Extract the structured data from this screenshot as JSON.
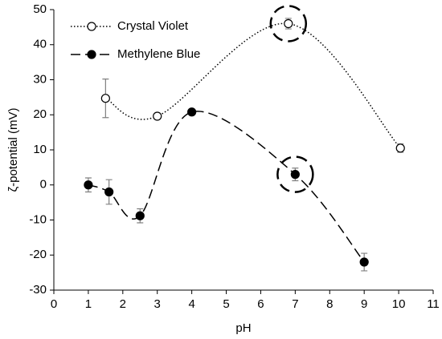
{
  "chart_data": {
    "type": "scatter",
    "xlabel": "pH",
    "ylabel": "ζ-potential (mV)",
    "xlim": [
      0,
      11
    ],
    "xticks": [
      0,
      1,
      2,
      3,
      4,
      5,
      6,
      7,
      8,
      9,
      10,
      11
    ],
    "ylim": [
      -30,
      50
    ],
    "yticks": [
      -30,
      -20,
      -10,
      0,
      10,
      20,
      30,
      40,
      50
    ],
    "grid": false,
    "legend": "upper left",
    "series": [
      {
        "name": "Crystal Violet",
        "color": "#000000",
        "marker": "open",
        "line_style": "dotted",
        "x": [
          1.5,
          3,
          6.8,
          10.05
        ],
        "values": [
          24.7,
          19.6,
          46,
          10.5
        ],
        "errors": [
          5.5,
          0.8,
          1.5,
          1.2
        ]
      },
      {
        "name": "Methylene Blue",
        "color": "#000000",
        "marker": "filled",
        "line_style": "dashed",
        "x": [
          1,
          1.6,
          2.5,
          4,
          7,
          9
        ],
        "values": [
          0,
          -2,
          -8.8,
          20.8,
          3,
          -22
        ],
        "errors": [
          2,
          3.5,
          2,
          0.5,
          1.8,
          2.5
        ]
      }
    ]
  }
}
